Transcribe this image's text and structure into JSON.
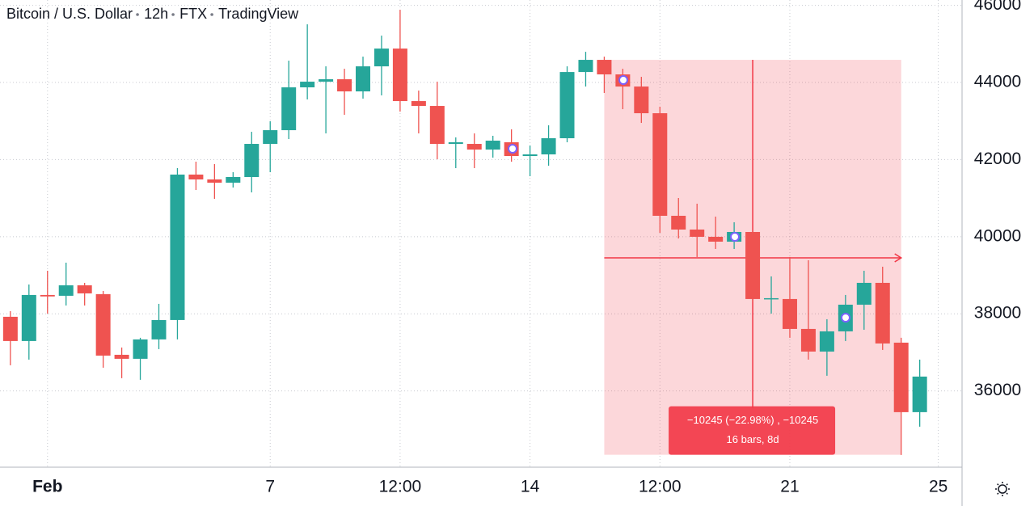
{
  "chart_data": {
    "type": "candlestick",
    "title_parts": [
      "Bitcoin / U.S. Dollar",
      "12h",
      "FTX",
      "TradingView"
    ],
    "x": [
      0,
      0.5,
      1,
      1.5,
      2,
      2.5,
      3,
      3.5,
      4,
      4.5,
      5,
      5.5,
      6,
      6.5,
      7,
      7.5,
      8,
      8.5,
      9,
      9.5,
      10,
      10.5,
      11,
      11.5,
      12,
      12.5,
      13,
      13.5,
      14,
      14.5,
      15,
      15.5,
      16,
      16.5,
      17,
      17.5,
      18,
      18.5,
      19,
      19.5,
      20,
      20.5,
      21,
      21.5,
      22,
      22.5,
      23,
      23.5,
      24,
      24.5
    ],
    "open": [
      37922,
      37293,
      38488,
      38467,
      38739,
      38510,
      36936,
      36832,
      37335,
      37838,
      41611,
      41485,
      41401,
      41548,
      42407,
      42763,
      43874,
      44021,
      44084,
      43769,
      44419,
      44880,
      43518,
      43392,
      42407,
      42407,
      42260,
      42449,
      42093,
      42135,
      42554,
      44272,
      44587,
      44210,
      43895,
      43203,
      40542,
      40185,
      39997,
      39871,
      40122,
      38383,
      38383,
      37607,
      37020,
      37544,
      38236,
      38802,
      37251,
      35448
    ],
    "high": [
      38068,
      38760,
      39116,
      39326,
      38802,
      38592,
      37125,
      37377,
      38257,
      41778,
      41946,
      41883,
      41673,
      42721,
      42994,
      44566,
      45509,
      44419,
      44356,
      44671,
      45216,
      45886,
      43790,
      44021,
      42575,
      42679,
      42617,
      42784,
      42365,
      42889,
      44419,
      44796,
      44671,
      44356,
      44147,
      43371,
      41003,
      40856,
      40521,
      40374,
      40164,
      38970,
      39473,
      39389,
      37859,
      38488,
      39116,
      39221,
      37377,
      36811
    ],
    "low": [
      36664,
      36811,
      38005,
      38215,
      38215,
      36601,
      36329,
      36287,
      37083,
      37335,
      41212,
      40982,
      41275,
      41149,
      41673,
      42533,
      43560,
      42679,
      43162,
      43581,
      43665,
      43245,
      42679,
      42009,
      41778,
      41778,
      42051,
      41946,
      41569,
      41841,
      42449,
      43895,
      43728,
      43308,
      42952,
      40101,
      39955,
      39473,
      39682,
      39682,
      38300,
      38005,
      37377,
      36811,
      36392,
      37293,
      37586,
      37062,
      34337,
      35071
    ],
    "close": [
      37293,
      38488,
      38450,
      38739,
      38529,
      36915,
      36832,
      37335,
      37838,
      41611,
      41485,
      41401,
      41548,
      42407,
      42763,
      43874,
      44021,
      44084,
      43769,
      44419,
      44880,
      43518,
      43392,
      42407,
      42449,
      42260,
      42491,
      42093,
      42135,
      42554,
      44272,
      44587,
      44210,
      43895,
      43203,
      40542,
      40185,
      39997,
      39871,
      40122,
      38383,
      38404,
      37607,
      37020,
      37544,
      38236,
      38802,
      37230,
      35448,
      36371
    ],
    "up_color": "#26a69a",
    "down_color": "#ef5350",
    "xlim": [
      -0.28,
      25.64
    ],
    "xticks": [
      {
        "value": 1,
        "label": "Feb"
      },
      7,
      {
        "value": 10.5,
        "label": "12:00"
      },
      14,
      {
        "value": 17.5,
        "label": "12:00"
      },
      21,
      25
    ],
    "ylim": [
      34020,
      46140
    ],
    "yticks": [
      36000,
      38000,
      40000,
      42000,
      44000,
      46000
    ],
    "grid": true,
    "measure": {
      "x": [
        16,
        24
      ],
      "y": [
        44587,
        34342
      ],
      "crosshair_x": 20,
      "arrow_y": 39451,
      "color": "#f23645",
      "label_lines": [
        "−10245 (−22.98%) , −10245",
        "16 bars, 8d"
      ]
    }
  }
}
